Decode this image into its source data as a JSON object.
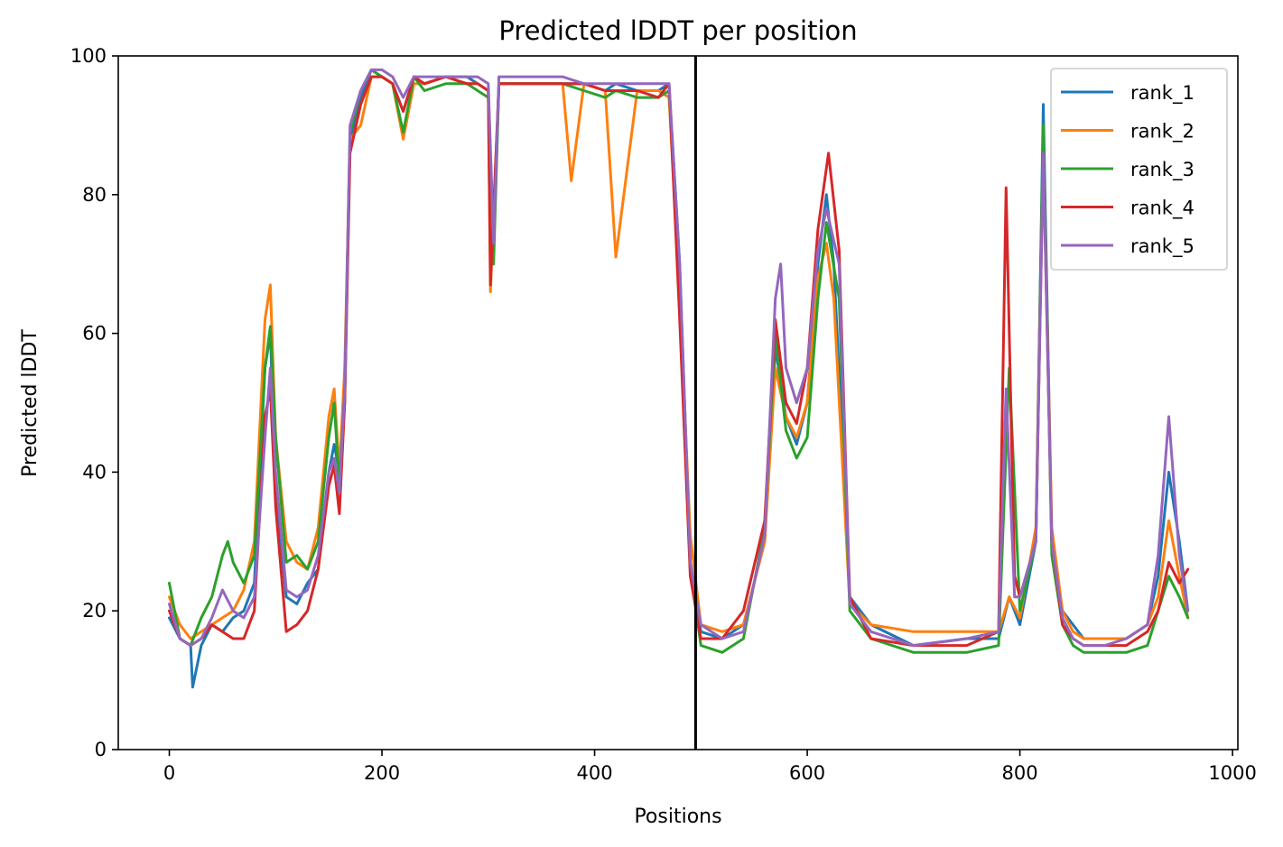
{
  "chart_data": {
    "type": "line",
    "title": "Predicted lDDT per position",
    "xlabel": "Positions",
    "ylabel": "Predicted lDDT",
    "xlim": [
      -48,
      1005
    ],
    "ylim": [
      0,
      100
    ],
    "xticks": [
      0,
      200,
      400,
      600,
      800,
      1000
    ],
    "yticks": [
      0,
      20,
      40,
      60,
      80,
      100
    ],
    "grid": false,
    "legend_position": "top-right",
    "vline": 495,
    "vline_color": "#000000",
    "colors": {
      "rank_1": "#1f77b4",
      "rank_2": "#ff7f0e",
      "rank_3": "#2ca02c",
      "rank_4": "#d62728",
      "rank_5": "#9467bd"
    },
    "series": [
      {
        "name": "rank_1",
        "color": "#1f77b4",
        "x": [
          0,
          10,
          20,
          22,
          30,
          40,
          50,
          60,
          70,
          80,
          90,
          95,
          100,
          110,
          120,
          130,
          140,
          150,
          155,
          160,
          165,
          170,
          180,
          190,
          200,
          210,
          220,
          230,
          240,
          260,
          280,
          290,
          300,
          305,
          310,
          330,
          350,
          370,
          390,
          410,
          420,
          440,
          460,
          470,
          480,
          490,
          500,
          520,
          540,
          560,
          570,
          580,
          590,
          600,
          610,
          618,
          625,
          640,
          660,
          700,
          750,
          780,
          790,
          800,
          815,
          822,
          830,
          840,
          850,
          860,
          880,
          900,
          920,
          930,
          940,
          950,
          958
        ],
        "y": [
          19,
          16,
          15,
          9,
          15,
          18,
          17,
          19,
          20,
          24,
          55,
          60,
          38,
          22,
          21,
          24,
          26,
          40,
          44,
          40,
          50,
          88,
          94,
          98,
          97,
          96,
          92,
          97,
          96,
          97,
          97,
          96,
          95,
          72,
          96,
          96,
          96,
          96,
          96,
          95,
          96,
          95,
          95,
          96,
          70,
          27,
          17,
          16,
          18,
          30,
          58,
          48,
          44,
          50,
          70,
          80,
          70,
          22,
          18,
          15,
          16,
          16,
          22,
          18,
          30,
          93,
          30,
          20,
          18,
          16,
          16,
          16,
          18,
          25,
          40,
          30,
          20
        ]
      },
      {
        "name": "rank_2",
        "color": "#ff7f0e",
        "x": [
          0,
          10,
          20,
          30,
          40,
          50,
          60,
          70,
          80,
          90,
          95,
          100,
          110,
          120,
          130,
          140,
          150,
          155,
          160,
          165,
          170,
          180,
          190,
          200,
          210,
          220,
          230,
          240,
          260,
          280,
          290,
          300,
          302,
          310,
          330,
          350,
          370,
          378,
          390,
          410,
          420,
          440,
          460,
          470,
          480,
          490,
          500,
          520,
          540,
          560,
          570,
          580,
          590,
          600,
          610,
          618,
          625,
          640,
          660,
          700,
          750,
          780,
          790,
          800,
          815,
          822,
          830,
          840,
          850,
          860,
          880,
          900,
          920,
          930,
          940,
          950,
          958
        ],
        "y": [
          22,
          18,
          16,
          17,
          18,
          19,
          20,
          23,
          30,
          62,
          67,
          45,
          30,
          27,
          26,
          32,
          48,
          52,
          40,
          55,
          88,
          90,
          97,
          97,
          96,
          88,
          96,
          96,
          97,
          96,
          96,
          95,
          66,
          96,
          96,
          96,
          96,
          82,
          96,
          95,
          71,
          95,
          95,
          94,
          65,
          31,
          18,
          17,
          18,
          30,
          55,
          48,
          45,
          50,
          68,
          73,
          65,
          21,
          18,
          17,
          17,
          17,
          22,
          19,
          32,
          88,
          32,
          20,
          17,
          16,
          16,
          16,
          18,
          22,
          33,
          25,
          19
        ]
      },
      {
        "name": "rank_3",
        "color": "#2ca02c",
        "x": [
          0,
          10,
          20,
          30,
          40,
          50,
          55,
          60,
          70,
          80,
          90,
          95,
          100,
          110,
          120,
          130,
          140,
          150,
          155,
          160,
          165,
          170,
          180,
          190,
          200,
          210,
          220,
          230,
          240,
          260,
          280,
          290,
          300,
          305,
          310,
          330,
          350,
          370,
          390,
          410,
          420,
          440,
          460,
          470,
          480,
          490,
          500,
          520,
          540,
          560,
          570,
          580,
          590,
          600,
          610,
          618,
          630,
          640,
          660,
          700,
          750,
          780,
          790,
          800,
          815,
          822,
          830,
          840,
          850,
          860,
          880,
          900,
          920,
          930,
          940,
          950,
          958
        ],
        "y": [
          24,
          16,
          15,
          19,
          22,
          28,
          30,
          27,
          24,
          28,
          55,
          61,
          45,
          27,
          28,
          26,
          30,
          45,
          50,
          38,
          52,
          89,
          95,
          98,
          97,
          96,
          89,
          97,
          95,
          96,
          96,
          95,
          94,
          70,
          96,
          96,
          96,
          96,
          95,
          94,
          95,
          94,
          94,
          95,
          68,
          26,
          15,
          14,
          16,
          32,
          60,
          46,
          42,
          45,
          65,
          76,
          65,
          20,
          16,
          14,
          14,
          15,
          55,
          20,
          30,
          90,
          28,
          18,
          15,
          14,
          14,
          14,
          15,
          20,
          25,
          22,
          19
        ]
      },
      {
        "name": "rank_4",
        "color": "#d62728",
        "x": [
          0,
          10,
          20,
          30,
          40,
          50,
          60,
          70,
          80,
          90,
          95,
          100,
          110,
          120,
          130,
          140,
          150,
          155,
          160,
          165,
          170,
          180,
          190,
          200,
          210,
          220,
          230,
          240,
          260,
          280,
          290,
          300,
          302,
          310,
          330,
          350,
          370,
          390,
          410,
          420,
          440,
          460,
          470,
          480,
          490,
          500,
          520,
          540,
          560,
          570,
          580,
          590,
          600,
          610,
          620,
          630,
          640,
          660,
          700,
          750,
          780,
          787,
          795,
          800,
          815,
          822,
          830,
          840,
          850,
          860,
          880,
          900,
          920,
          930,
          940,
          950,
          958
        ],
        "y": [
          20,
          16,
          15,
          16,
          18,
          17,
          16,
          16,
          20,
          48,
          52,
          35,
          17,
          18,
          20,
          26,
          38,
          41,
          34,
          50,
          86,
          93,
          97,
          97,
          96,
          92,
          97,
          96,
          97,
          96,
          96,
          95,
          67,
          96,
          96,
          96,
          96,
          96,
          95,
          95,
          95,
          94,
          96,
          62,
          25,
          16,
          16,
          20,
          33,
          62,
          50,
          47,
          55,
          75,
          86,
          72,
          22,
          16,
          15,
          15,
          17,
          81,
          25,
          22,
          30,
          86,
          30,
          18,
          16,
          15,
          15,
          15,
          17,
          20,
          27,
          24,
          26
        ]
      },
      {
        "name": "rank_5",
        "color": "#9467bd",
        "x": [
          0,
          10,
          20,
          30,
          40,
          50,
          60,
          70,
          80,
          90,
          95,
          100,
          110,
          120,
          130,
          140,
          150,
          155,
          160,
          165,
          170,
          180,
          190,
          200,
          210,
          220,
          230,
          240,
          260,
          280,
          290,
          300,
          305,
          310,
          330,
          350,
          370,
          390,
          410,
          420,
          440,
          460,
          470,
          480,
          490,
          500,
          520,
          540,
          560,
          570,
          575,
          580,
          590,
          600,
          610,
          618,
          630,
          640,
          660,
          700,
          750,
          780,
          787,
          795,
          800,
          815,
          822,
          830,
          840,
          850,
          860,
          880,
          900,
          920,
          930,
          940,
          950,
          958
        ],
        "y": [
          21,
          16,
          15,
          16,
          19,
          23,
          20,
          19,
          22,
          45,
          55,
          40,
          23,
          22,
          23,
          28,
          40,
          42,
          37,
          52,
          90,
          95,
          98,
          98,
          97,
          94,
          97,
          97,
          97,
          97,
          97,
          96,
          73,
          97,
          97,
          97,
          97,
          96,
          96,
          96,
          96,
          96,
          96,
          70,
          27,
          18,
          16,
          17,
          31,
          65,
          70,
          55,
          50,
          55,
          72,
          78,
          70,
          21,
          17,
          15,
          16,
          17,
          52,
          22,
          22,
          30,
          86,
          30,
          19,
          16,
          15,
          15,
          16,
          18,
          28,
          48,
          28,
          20
        ]
      }
    ]
  }
}
